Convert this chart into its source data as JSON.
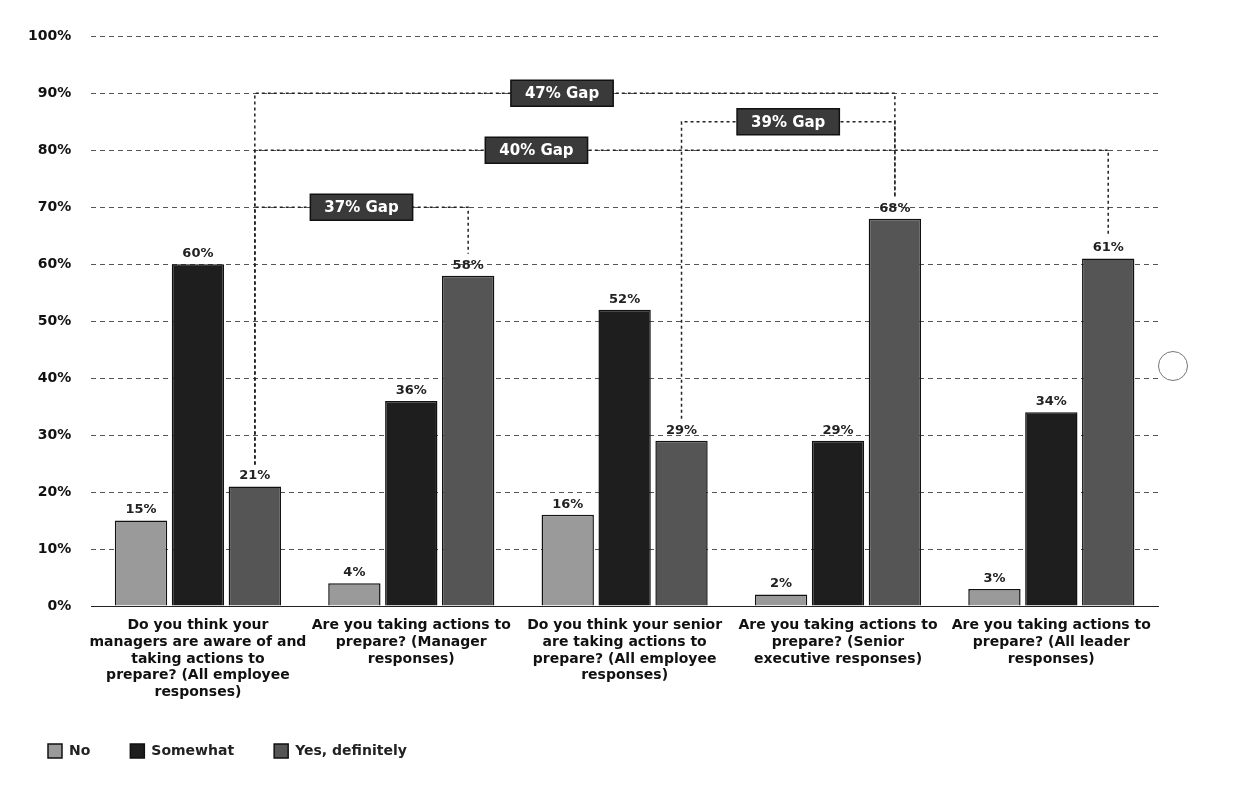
{
  "chart_data": {
    "type": "bar",
    "categories": [
      "Do you think your managers are aware of and taking actions to prepare? (All employee responses)",
      "Are you taking actions to prepare? (Manager responses)",
      "Do you think your senior are taking actions to prepare? (All employee responses)",
      "Are you taking actions to prepare? (Senior executive responses)",
      "Are you taking actions to prepare? (All leader responses)"
    ],
    "series": [
      {
        "name": "No",
        "color": "#9a9a9a",
        "values": [
          15,
          4,
          16,
          2,
          3
        ],
        "value_labels": [
          "15%",
          "4%",
          "16%",
          "2%",
          "3%"
        ]
      },
      {
        "name": "Somewhat",
        "color": "#1e1e1e",
        "values": [
          60,
          36,
          52,
          29,
          34
        ],
        "value_labels": [
          "60%",
          "36%",
          "52%",
          "29%",
          "34%"
        ]
      },
      {
        "name": "Yes, definitely",
        "color": "#555555",
        "values": [
          21,
          58,
          29,
          68,
          61
        ],
        "value_labels": [
          "21%",
          "58%",
          "29%",
          "68%",
          "61%"
        ]
      }
    ],
    "ylim": [
      0,
      100
    ],
    "yticks": [
      {
        "value": 0,
        "label": "0%"
      },
      {
        "value": 10,
        "label": "10%"
      },
      {
        "value": 20,
        "label": "20%"
      },
      {
        "value": 30,
        "label": "30%"
      },
      {
        "value": 40,
        "label": "40%"
      },
      {
        "value": 50,
        "label": "50%"
      },
      {
        "value": 60,
        "label": "60%"
      },
      {
        "value": 70,
        "label": "70%"
      },
      {
        "value": 80,
        "label": "80%"
      },
      {
        "value": 90,
        "label": "90%"
      },
      {
        "value": 100,
        "label": "100%"
      }
    ],
    "grid": "y",
    "legend": "bottom left",
    "annotations": [
      "47% Gap",
      "39% Gap",
      "40% Gap",
      "37% Gap"
    ]
  }
}
